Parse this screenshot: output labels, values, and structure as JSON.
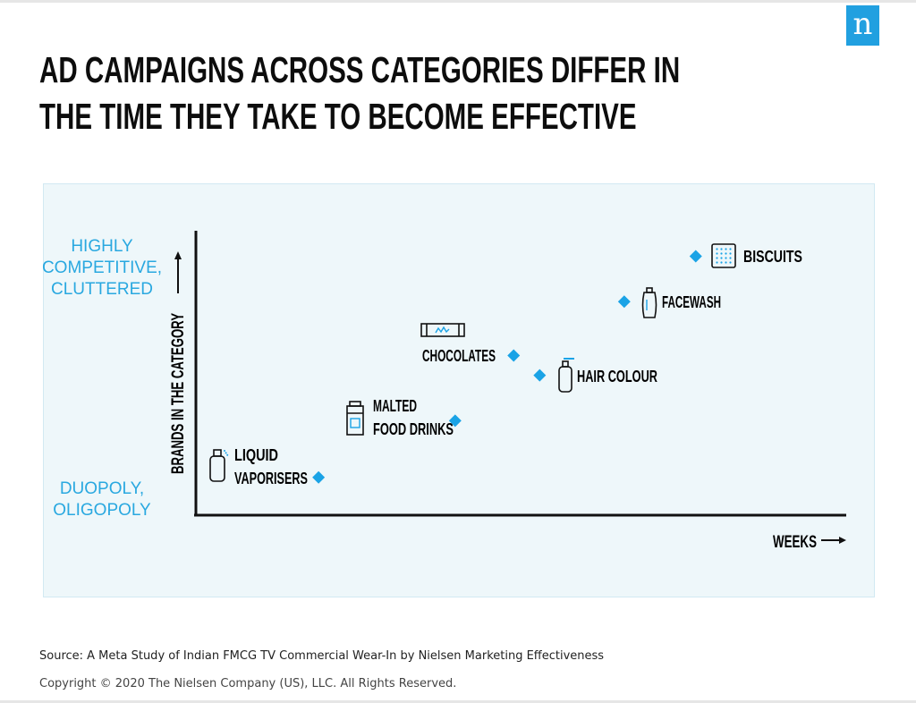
{
  "brand": {
    "logo_text": "n",
    "color": "#21a0e0"
  },
  "title_lines": [
    "AD CAMPAIGNS ACROSS CATEGORIES DIFFER IN",
    "THE TIME THEY TAKE TO BECOME EFFECTIVE"
  ],
  "chart_data": {
    "type": "scatter",
    "xlabel": "WEEKS",
    "ylabel": "BRANDS IN THE CATEGORY",
    "y_axis_high_label": [
      "HIGHLY",
      "COMPETITIVE,",
      "CLUTTERED"
    ],
    "y_axis_low_label": [
      "DUOPOLY,",
      "OLIGOPOLY"
    ],
    "xlim": [
      0,
      100
    ],
    "ylim": [
      0,
      100
    ],
    "marker_color": "#1aa3e6",
    "label_color": "#29a8e0",
    "points": [
      {
        "label_lines": [
          "LIQUID",
          "VAPORISERS"
        ],
        "x": 19,
        "y": 13,
        "icon": "spray-bottle-icon"
      },
      {
        "label_lines": [
          "MALTED",
          "FOOD DRINKS"
        ],
        "x": 40,
        "y": 33,
        "icon": "jar-icon"
      },
      {
        "label_lines": [
          "CHOCOLATES"
        ],
        "x": 49,
        "y": 56,
        "icon": "chocolate-bar-icon"
      },
      {
        "label_lines": [
          "HAIR COLOUR"
        ],
        "x": 53,
        "y": 49,
        "icon": "pump-bottle-icon"
      },
      {
        "label_lines": [
          "FACEWASH"
        ],
        "x": 66,
        "y": 75,
        "icon": "tube-icon"
      },
      {
        "label_lines": [
          "BISCUITS"
        ],
        "x": 77,
        "y": 91,
        "icon": "biscuit-icon"
      }
    ]
  },
  "footer": {
    "source": "Source: A Meta Study of Indian FMCG TV Commercial Wear-In by Nielsen Marketing Effectiveness",
    "copyright": "Copyright © 2020 The Nielsen Company (US), LLC. All Rights Reserved."
  }
}
